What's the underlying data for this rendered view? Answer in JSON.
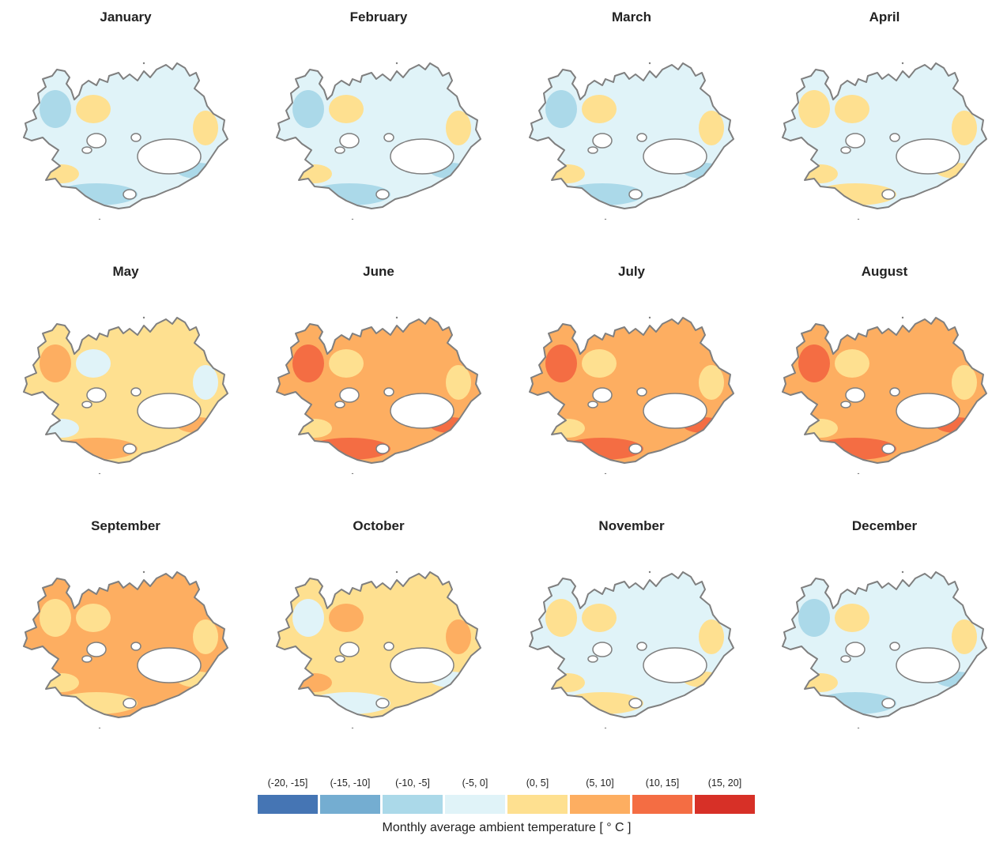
{
  "chart_data": {
    "type": "heatmap",
    "description_kind": "small multiples choropleth map",
    "panels": [
      {
        "title": "January",
        "warm_fraction": 0.12,
        "dominant_bins": [
          "(-5, 0]",
          "(-10, -5]",
          "(0, 5]"
        ]
      },
      {
        "title": "February",
        "warm_fraction": 0.13,
        "dominant_bins": [
          "(-5, 0]",
          "(-10, -5]",
          "(0, 5]"
        ]
      },
      {
        "title": "March",
        "warm_fraction": 0.12,
        "dominant_bins": [
          "(-5, 0]",
          "(-10, -5]",
          "(0, 5]"
        ]
      },
      {
        "title": "April",
        "warm_fraction": 0.3,
        "dominant_bins": [
          "(-5, 0]",
          "(0, 5]"
        ]
      },
      {
        "title": "May",
        "warm_fraction": 0.78,
        "dominant_bins": [
          "(0, 5]",
          "(5, 10]",
          "(-5, 0]"
        ]
      },
      {
        "title": "June",
        "warm_fraction": 1.0,
        "dominant_bins": [
          "(5, 10]",
          "(10, 15]",
          "(0, 5]"
        ]
      },
      {
        "title": "July",
        "warm_fraction": 1.0,
        "dominant_bins": [
          "(5, 10]",
          "(10, 15]",
          "(0, 5]"
        ]
      },
      {
        "title": "August",
        "warm_fraction": 1.0,
        "dominant_bins": [
          "(5, 10]",
          "(10, 15]",
          "(0, 5]"
        ]
      },
      {
        "title": "September",
        "warm_fraction": 1.0,
        "dominant_bins": [
          "(5, 10]",
          "(0, 5]"
        ]
      },
      {
        "title": "October",
        "warm_fraction": 0.7,
        "dominant_bins": [
          "(0, 5]",
          "(-5, 0]",
          "(5, 10]"
        ]
      },
      {
        "title": "November",
        "warm_fraction": 0.15,
        "dominant_bins": [
          "(-5, 0]",
          "(0, 5]"
        ]
      },
      {
        "title": "December",
        "warm_fraction": 0.08,
        "dominant_bins": [
          "(-5, 0]",
          "(-10, -5]",
          "(0, 5]"
        ]
      }
    ],
    "legend": {
      "title": "Monthly average ambient temperature [ ° C ]",
      "bins": [
        {
          "label": "(-20, -15]",
          "color": "#4575b4"
        },
        {
          "label": "(-15, -10]",
          "color": "#74add1"
        },
        {
          "label": "(-10, -5]",
          "color": "#abd9e9"
        },
        {
          "label": "(-5, 0]",
          "color": "#e0f3f8"
        },
        {
          "label": "(0, 5]",
          "color": "#fee090"
        },
        {
          "label": "(5, 10]",
          "color": "#fdae61"
        },
        {
          "label": "(10, 15]",
          "color": "#f46d43"
        },
        {
          "label": "(15, 20]",
          "color": "#d73027"
        }
      ],
      "placement": "bottom-center"
    },
    "outline_color": "#7f7f7f",
    "glacier_color": "#ffffff"
  }
}
